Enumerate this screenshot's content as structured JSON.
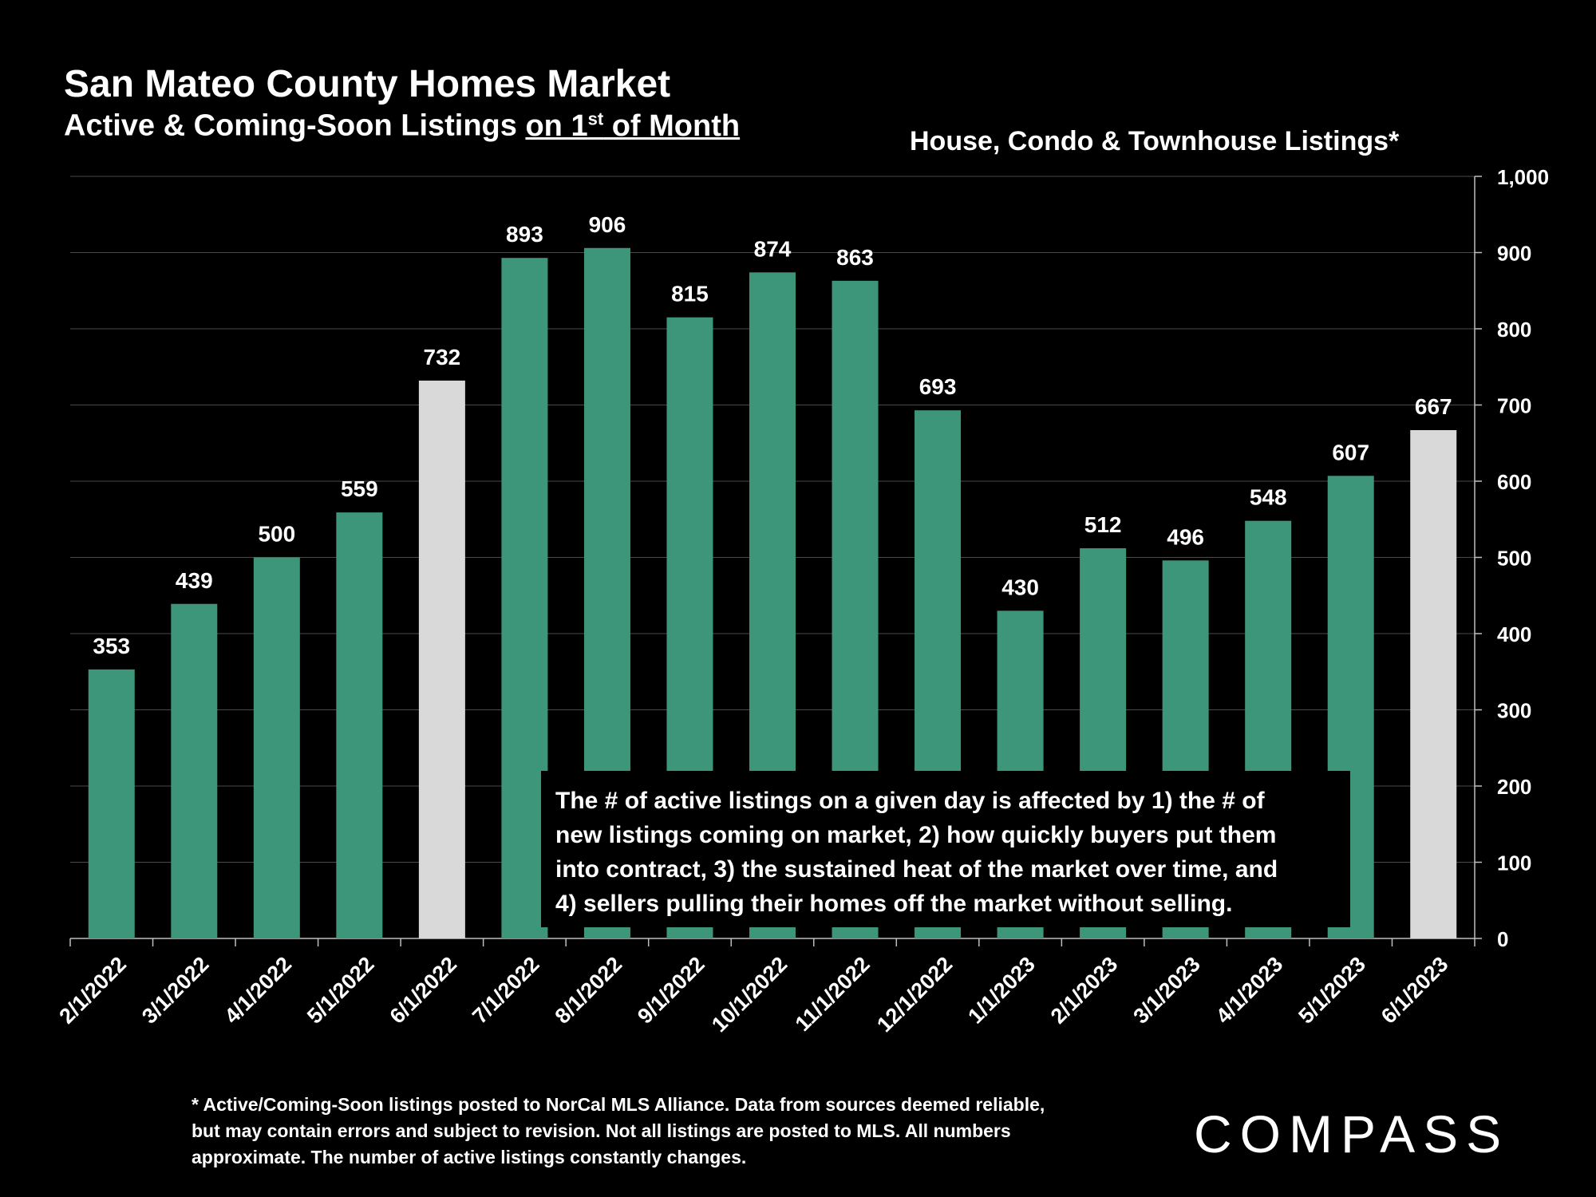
{
  "header": {
    "title": "San Mateo County Homes Market",
    "subtitle_pre": "Active & Coming-Soon Listings ",
    "subtitle_link_a": "on 1",
    "subtitle_sup": "st",
    "subtitle_link_b": " of Month",
    "series_title": "House, Condo & Townhouse Listings*"
  },
  "colors": {
    "bar_main": "#3d967a",
    "bar_highlight": "#d9d9d9",
    "gridline": "#4a4a4a",
    "background": "#000000"
  },
  "chart_data": {
    "type": "bar",
    "categories": [
      "2/1/2022",
      "3/1/2022",
      "4/1/2022",
      "5/1/2022",
      "6/1/2022",
      "7/1/2022",
      "8/1/2022",
      "9/1/2022",
      "10/1/2022",
      "11/1/2022",
      "12/1/2022",
      "1/1/2023",
      "2/1/2023",
      "3/1/2023",
      "4/1/2023",
      "5/1/2023",
      "6/1/2023"
    ],
    "values": [
      353,
      439,
      500,
      559,
      732,
      893,
      906,
      815,
      874,
      863,
      693,
      430,
      512,
      496,
      548,
      607,
      667
    ],
    "highlighted": [
      "6/1/2022",
      "6/1/2023"
    ],
    "ylim": [
      0,
      1000
    ],
    "yticks": [
      0,
      100,
      200,
      300,
      400,
      500,
      600,
      700,
      800,
      900,
      1000
    ],
    "ytick_labels": [
      "0",
      "100",
      "200",
      "300",
      "400",
      "500",
      "600",
      "700",
      "800",
      "900",
      "1,000"
    ],
    "y_axis_side": "right",
    "grid": true,
    "xlabel": "",
    "ylabel": ""
  },
  "annotation": {
    "lines": [
      "The # of active listings on a given day is affected by 1) the # of",
      "new listings coming on market, 2) how quickly buyers put them",
      "into contract, 3) the sustained heat of the market over time, and",
      "4) sellers pulling their homes off the market without selling."
    ]
  },
  "footnote": {
    "lines": [
      "* Active/Coming-Soon listings posted to NorCal MLS Alliance.  Data from sources deemed reliable,",
      "but may contain errors and subject to revision.  Not all listings are posted to MLS. All numbers",
      "approximate. The number of active listings constantly changes."
    ]
  },
  "logo": {
    "text": "COMPASS"
  }
}
